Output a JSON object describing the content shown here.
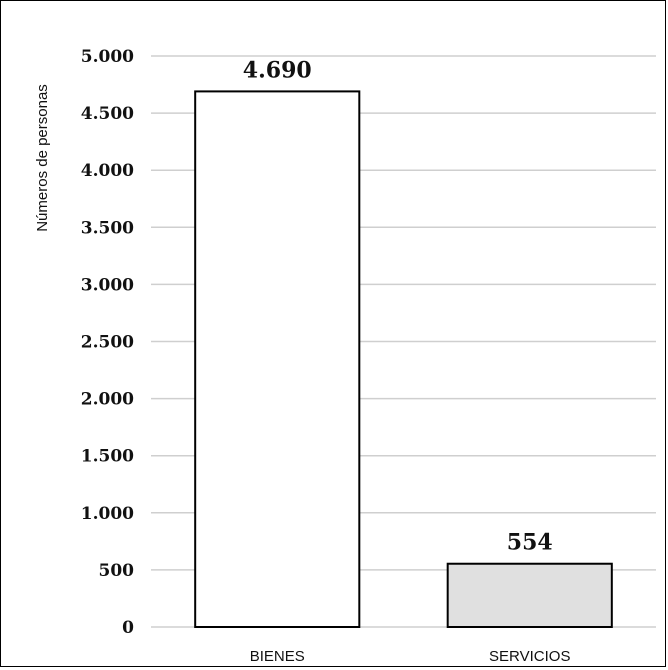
{
  "chart_data": {
    "type": "bar",
    "categories": [
      "BIENES",
      "SERVICIOS"
    ],
    "values": [
      4690,
      554
    ],
    "data_labels": [
      "4.690",
      "554"
    ],
    "bar_colors": [
      "#ffffff",
      "#e0e0e0"
    ],
    "title": "",
    "xlabel": "",
    "ylabel": "Números de personas",
    "ylim": [
      0,
      5000
    ],
    "yticks": [
      0,
      500,
      1000,
      1500,
      2000,
      2500,
      3000,
      3500,
      4000,
      4500,
      5000
    ],
    "ytick_labels": [
      "0",
      "500",
      "1.000",
      "1.500",
      "2.000",
      "2.500",
      "3.000",
      "3.500",
      "4.000",
      "4.500",
      "5.000"
    ],
    "grid": true,
    "grid_color": "#cfcfcf"
  }
}
